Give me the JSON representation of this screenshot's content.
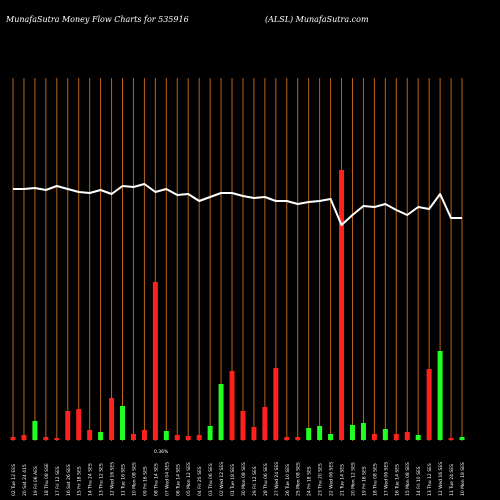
{
  "header": {
    "left_text": "MunafaSutra  Money Flow  Charts for 535916",
    "right_text": "(ALSL) MunafaSutra.com"
  },
  "colors": {
    "background": "#000000",
    "gridline": "#b8641a",
    "line": "#ffffff",
    "up": "#22ff22",
    "down": "#ff2020",
    "label": "#ffffff"
  },
  "chart_data": {
    "type": "bar",
    "title": "",
    "xlabel": "",
    "ylabel": "",
    "grid": true,
    "categories": [
      "02 Tue 12 EES",
      "20 Sat 24 415",
      "19 Fri 06 AES",
      "18 Thu 08 SSE",
      "17 Fri 12 SES",
      "16 Sat 26 SES",
      "15 Fri 18 SES",
      "14 Thu 24 SES",
      "13 Thu 12 SES",
      "12 Wed 16 SES",
      "11 Tue 16 SES",
      "10 Mon 08 SES",
      "09 Fri 16 SES",
      "08 Thu 14 SES",
      "07 Wed 04 SES",
      "06 Tue 14 SES",
      "05 Mon 12 SES",
      "04 Fri 20 SES",
      "03 Thu 06 SES",
      "02 Wed 12 SES",
      "01 Tue 18 SES",
      "30 Mon 08 SES",
      "29 Fri 12 SES",
      "28 Thu 06 SES",
      "27 Wed 24 SES",
      "26 Tue 10 SES",
      "25 Mon 08 SES",
      "24 Fri 18 SES",
      "23 Thu 20 SES",
      "22 Wed 06 SES",
      "21 Tue 14 SES",
      "20 Mon 12 SES",
      "19 Fri 16 SES",
      "18 Thu 08 SES",
      "17 Wed 06 SES",
      "16 Tue 14 SES",
      "15 Mon 08 SES",
      "14 Fri 10 SES",
      "13 Thu 12 SES",
      "12 Wed 16 SES",
      "11 Tue 24 SES",
      "10 Mon 18 SES"
    ],
    "side_label": "0.36%",
    "bar_heights": [
      3,
      5,
      19,
      3,
      2,
      29,
      31,
      10,
      8,
      42,
      34,
      6,
      10,
      158,
      9,
      5,
      4,
      5,
      14,
      56,
      69,
      29,
      13,
      33,
      72,
      3,
      3,
      12,
      14,
      6,
      270,
      15,
      17,
      6,
      11,
      6,
      8,
      5,
      71,
      89,
      2,
      3
    ],
    "bar_colors": [
      "red",
      "red",
      "green",
      "red",
      "red",
      "red",
      "red",
      "red",
      "green",
      "red",
      "green",
      "red",
      "red",
      "red",
      "green",
      "red",
      "red",
      "red",
      "green",
      "green",
      "red",
      "red",
      "red",
      "red",
      "red",
      "red",
      "red",
      "green",
      "green",
      "green",
      "red",
      "green",
      "green",
      "red",
      "green",
      "red",
      "red",
      "green",
      "red",
      "green",
      "red",
      "green"
    ],
    "line_values": [
      251,
      251,
      252,
      250,
      254,
      251,
      248,
      247,
      250,
      246,
      254,
      253,
      256,
      248,
      251,
      245,
      246,
      239,
      243,
      247,
      247,
      244,
      242,
      243,
      239,
      239,
      236,
      238,
      239,
      241,
      215,
      225,
      234,
      233,
      236,
      230,
      225,
      233,
      231,
      246,
      222,
      222
    ]
  }
}
